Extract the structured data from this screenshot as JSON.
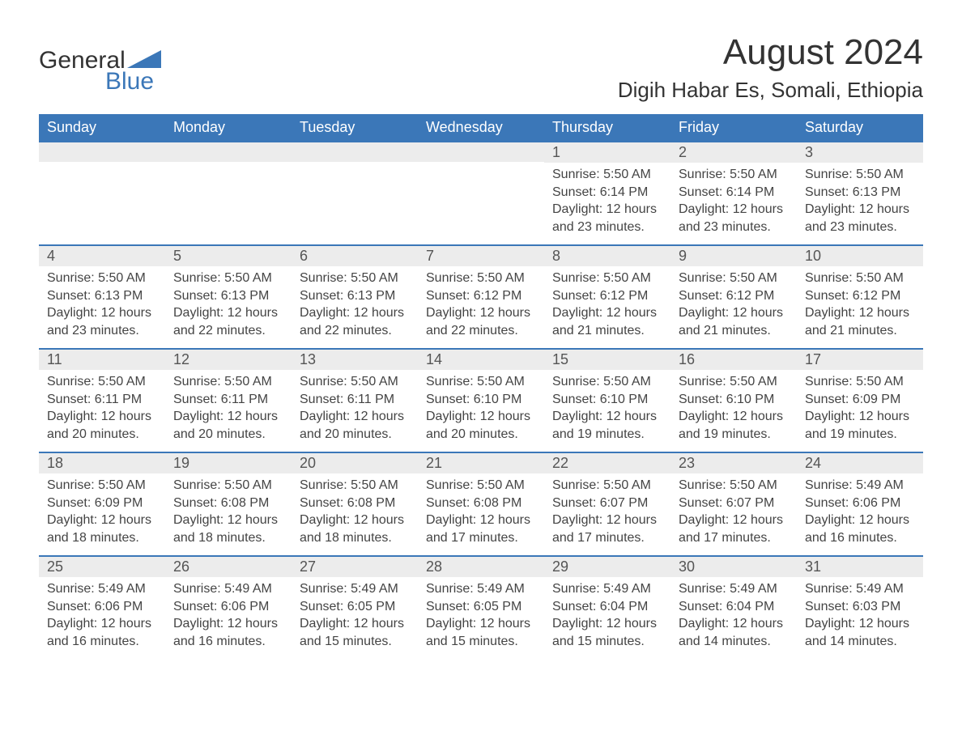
{
  "brand": {
    "general": "General",
    "blue": "Blue",
    "accent_color": "#3b77b8"
  },
  "title": "August 2024",
  "location": "Digih Habar Es, Somali, Ethiopia",
  "weekdays": [
    "Sunday",
    "Monday",
    "Tuesday",
    "Wednesday",
    "Thursday",
    "Friday",
    "Saturday"
  ],
  "colors": {
    "header_bg": "#3b77b8",
    "header_text": "#ffffff",
    "daynum_bg": "#ececec",
    "row_border": "#3b77b8",
    "body_text": "#444444",
    "background": "#ffffff"
  },
  "fonts": {
    "title_size": 44,
    "location_size": 26,
    "weekday_size": 18,
    "body_size": 16
  },
  "weeks": [
    [
      {
        "empty": true
      },
      {
        "empty": true
      },
      {
        "empty": true
      },
      {
        "empty": true
      },
      {
        "n": "1",
        "sunrise": "Sunrise: 5:50 AM",
        "sunset": "Sunset: 6:14 PM",
        "day1": "Daylight: 12 hours",
        "day2": "and 23 minutes."
      },
      {
        "n": "2",
        "sunrise": "Sunrise: 5:50 AM",
        "sunset": "Sunset: 6:14 PM",
        "day1": "Daylight: 12 hours",
        "day2": "and 23 minutes."
      },
      {
        "n": "3",
        "sunrise": "Sunrise: 5:50 AM",
        "sunset": "Sunset: 6:13 PM",
        "day1": "Daylight: 12 hours",
        "day2": "and 23 minutes."
      }
    ],
    [
      {
        "n": "4",
        "sunrise": "Sunrise: 5:50 AM",
        "sunset": "Sunset: 6:13 PM",
        "day1": "Daylight: 12 hours",
        "day2": "and 23 minutes."
      },
      {
        "n": "5",
        "sunrise": "Sunrise: 5:50 AM",
        "sunset": "Sunset: 6:13 PM",
        "day1": "Daylight: 12 hours",
        "day2": "and 22 minutes."
      },
      {
        "n": "6",
        "sunrise": "Sunrise: 5:50 AM",
        "sunset": "Sunset: 6:13 PM",
        "day1": "Daylight: 12 hours",
        "day2": "and 22 minutes."
      },
      {
        "n": "7",
        "sunrise": "Sunrise: 5:50 AM",
        "sunset": "Sunset: 6:12 PM",
        "day1": "Daylight: 12 hours",
        "day2": "and 22 minutes."
      },
      {
        "n": "8",
        "sunrise": "Sunrise: 5:50 AM",
        "sunset": "Sunset: 6:12 PM",
        "day1": "Daylight: 12 hours",
        "day2": "and 21 minutes."
      },
      {
        "n": "9",
        "sunrise": "Sunrise: 5:50 AM",
        "sunset": "Sunset: 6:12 PM",
        "day1": "Daylight: 12 hours",
        "day2": "and 21 minutes."
      },
      {
        "n": "10",
        "sunrise": "Sunrise: 5:50 AM",
        "sunset": "Sunset: 6:12 PM",
        "day1": "Daylight: 12 hours",
        "day2": "and 21 minutes."
      }
    ],
    [
      {
        "n": "11",
        "sunrise": "Sunrise: 5:50 AM",
        "sunset": "Sunset: 6:11 PM",
        "day1": "Daylight: 12 hours",
        "day2": "and 20 minutes."
      },
      {
        "n": "12",
        "sunrise": "Sunrise: 5:50 AM",
        "sunset": "Sunset: 6:11 PM",
        "day1": "Daylight: 12 hours",
        "day2": "and 20 minutes."
      },
      {
        "n": "13",
        "sunrise": "Sunrise: 5:50 AM",
        "sunset": "Sunset: 6:11 PM",
        "day1": "Daylight: 12 hours",
        "day2": "and 20 minutes."
      },
      {
        "n": "14",
        "sunrise": "Sunrise: 5:50 AM",
        "sunset": "Sunset: 6:10 PM",
        "day1": "Daylight: 12 hours",
        "day2": "and 20 minutes."
      },
      {
        "n": "15",
        "sunrise": "Sunrise: 5:50 AM",
        "sunset": "Sunset: 6:10 PM",
        "day1": "Daylight: 12 hours",
        "day2": "and 19 minutes."
      },
      {
        "n": "16",
        "sunrise": "Sunrise: 5:50 AM",
        "sunset": "Sunset: 6:10 PM",
        "day1": "Daylight: 12 hours",
        "day2": "and 19 minutes."
      },
      {
        "n": "17",
        "sunrise": "Sunrise: 5:50 AM",
        "sunset": "Sunset: 6:09 PM",
        "day1": "Daylight: 12 hours",
        "day2": "and 19 minutes."
      }
    ],
    [
      {
        "n": "18",
        "sunrise": "Sunrise: 5:50 AM",
        "sunset": "Sunset: 6:09 PM",
        "day1": "Daylight: 12 hours",
        "day2": "and 18 minutes."
      },
      {
        "n": "19",
        "sunrise": "Sunrise: 5:50 AM",
        "sunset": "Sunset: 6:08 PM",
        "day1": "Daylight: 12 hours",
        "day2": "and 18 minutes."
      },
      {
        "n": "20",
        "sunrise": "Sunrise: 5:50 AM",
        "sunset": "Sunset: 6:08 PM",
        "day1": "Daylight: 12 hours",
        "day2": "and 18 minutes."
      },
      {
        "n": "21",
        "sunrise": "Sunrise: 5:50 AM",
        "sunset": "Sunset: 6:08 PM",
        "day1": "Daylight: 12 hours",
        "day2": "and 17 minutes."
      },
      {
        "n": "22",
        "sunrise": "Sunrise: 5:50 AM",
        "sunset": "Sunset: 6:07 PM",
        "day1": "Daylight: 12 hours",
        "day2": "and 17 minutes."
      },
      {
        "n": "23",
        "sunrise": "Sunrise: 5:50 AM",
        "sunset": "Sunset: 6:07 PM",
        "day1": "Daylight: 12 hours",
        "day2": "and 17 minutes."
      },
      {
        "n": "24",
        "sunrise": "Sunrise: 5:49 AM",
        "sunset": "Sunset: 6:06 PM",
        "day1": "Daylight: 12 hours",
        "day2": "and 16 minutes."
      }
    ],
    [
      {
        "n": "25",
        "sunrise": "Sunrise: 5:49 AM",
        "sunset": "Sunset: 6:06 PM",
        "day1": "Daylight: 12 hours",
        "day2": "and 16 minutes."
      },
      {
        "n": "26",
        "sunrise": "Sunrise: 5:49 AM",
        "sunset": "Sunset: 6:06 PM",
        "day1": "Daylight: 12 hours",
        "day2": "and 16 minutes."
      },
      {
        "n": "27",
        "sunrise": "Sunrise: 5:49 AM",
        "sunset": "Sunset: 6:05 PM",
        "day1": "Daylight: 12 hours",
        "day2": "and 15 minutes."
      },
      {
        "n": "28",
        "sunrise": "Sunrise: 5:49 AM",
        "sunset": "Sunset: 6:05 PM",
        "day1": "Daylight: 12 hours",
        "day2": "and 15 minutes."
      },
      {
        "n": "29",
        "sunrise": "Sunrise: 5:49 AM",
        "sunset": "Sunset: 6:04 PM",
        "day1": "Daylight: 12 hours",
        "day2": "and 15 minutes."
      },
      {
        "n": "30",
        "sunrise": "Sunrise: 5:49 AM",
        "sunset": "Sunset: 6:04 PM",
        "day1": "Daylight: 12 hours",
        "day2": "and 14 minutes."
      },
      {
        "n": "31",
        "sunrise": "Sunrise: 5:49 AM",
        "sunset": "Sunset: 6:03 PM",
        "day1": "Daylight: 12 hours",
        "day2": "and 14 minutes."
      }
    ]
  ]
}
